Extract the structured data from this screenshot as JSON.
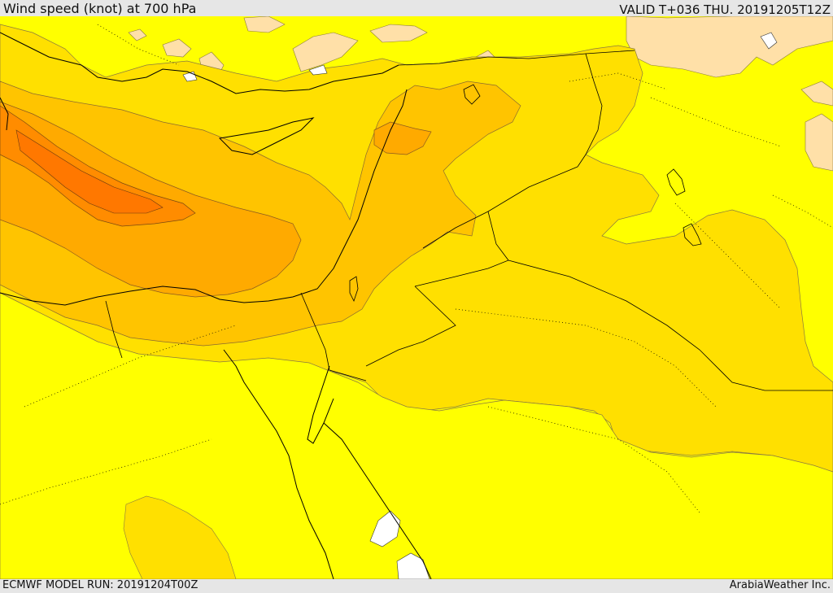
{
  "header": {
    "title": "Wind speed (knot) at 700 hPa",
    "valid": "VALID T+036 THU. 20191205T12Z"
  },
  "footer": {
    "model_run": "ECMWF MODEL RUN: 20191204T00Z",
    "brand": "ArabiaWeather Inc."
  },
  "map": {
    "field": "wind-speed-700hPa",
    "colors": {
      "lowest": "#ffe0a8",
      "low": "#ffff00",
      "moderate": "#ffe000",
      "elevated": "#ffc400",
      "high": "#ffaa00",
      "very_high": "#ff8c00",
      "peak": "#ff7800",
      "calm_spots": "#ffffff",
      "borders": "#000000"
    }
  }
}
